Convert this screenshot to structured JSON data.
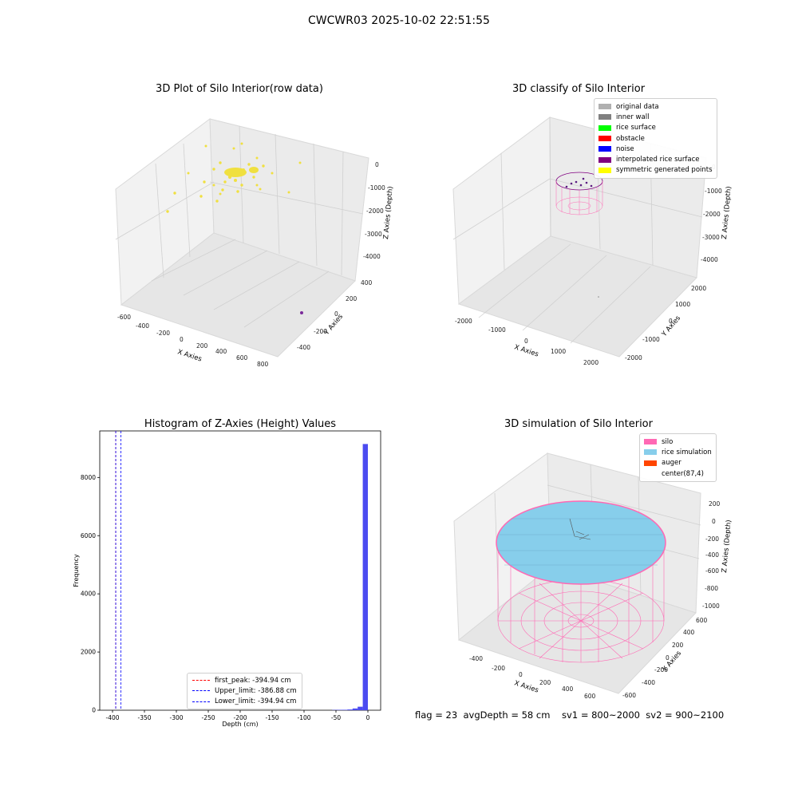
{
  "suptitle": "CWCWR03 2025-10-02 22:51:55",
  "panels": {
    "raw": {
      "title": "3D Plot of Silo Interior(row data)",
      "xlabel": "X Axies",
      "ylabel": "Y Axies",
      "zlabel": "Z Axies (Depth)",
      "xticks": [
        "-600",
        "-400",
        "-200",
        "0",
        "200",
        "400",
        "600",
        "800"
      ],
      "yticks": [
        "-400",
        "-200",
        "0",
        "200",
        "400"
      ],
      "zticks": [
        "0",
        "-1000",
        "-2000",
        "-3000",
        "-4000"
      ]
    },
    "classify": {
      "title": "3D classify of Silo Interior",
      "xlabel": "X Axies",
      "ylabel": "Y Axies",
      "zlabel": "Z Axies (Depth)",
      "xticks": [
        "-2000",
        "-1000",
        "0",
        "1000",
        "2000"
      ],
      "yticks": [
        "-2000",
        "-1000",
        "0",
        "1000",
        "2000"
      ],
      "zticks": [
        "0",
        "-1000",
        "-2000",
        "-3000",
        "-4000"
      ],
      "legend": [
        {
          "label": "original data",
          "color": "#b0b0b0"
        },
        {
          "label": "inner wall",
          "color": "#808080"
        },
        {
          "label": "rice surface",
          "color": "#00ff00"
        },
        {
          "label": "obstacle",
          "color": "#ff0000"
        },
        {
          "label": "noise",
          "color": "#0000ff"
        },
        {
          "label": "interpolated rice surface",
          "color": "#800080"
        },
        {
          "label": "symmetric generated points",
          "color": "#ffff00"
        }
      ]
    },
    "histogram": {
      "title": "Histogram of Z-Axies (Height) Values",
      "legend": [
        {
          "label": "first_peak: -394.94 cm",
          "color": "#ff0000"
        },
        {
          "label": "Upper_limit: -386.88 cm",
          "color": "#0000ff"
        },
        {
          "label": "Lower_limit: -394.94 cm",
          "color": "#0000ff"
        }
      ]
    },
    "simulation": {
      "title": "3D simulation of Silo Interior",
      "xlabel": "X Axies",
      "ylabel": "Y Axies",
      "zlabel": "Z Axies (Depth)",
      "xticks": [
        "-400",
        "-200",
        "0",
        "200",
        "400",
        "600"
      ],
      "yticks": [
        "-600",
        "-400",
        "-200",
        "0",
        "200",
        "400",
        "600"
      ],
      "zticks": [
        "200",
        "0",
        "-200",
        "-400",
        "-600",
        "-800",
        "-1000"
      ],
      "legend": [
        {
          "label": "silo",
          "color": "#ff69b4"
        },
        {
          "label": "rice simulation",
          "color": "#87ceeb"
        },
        {
          "label": "auger",
          "color": "#ff4500"
        },
        {
          "label": "center(87,4)",
          "color": ""
        }
      ]
    }
  },
  "footer": "flag = 23  avgDepth = 58 cm    sv1 = 800~2000  sv2 = 900~2100",
  "chart_data": [
    {
      "type": "bar",
      "title": "Histogram of Z-Axies (Height) Values",
      "xlabel": "Depth (cm)",
      "ylabel": "Frequency",
      "xlim": [
        -420,
        20
      ],
      "ylim": [
        0,
        9600
      ],
      "xticks": [
        -400,
        -350,
        -300,
        -250,
        -200,
        -150,
        -100,
        -50,
        0
      ],
      "yticks": [
        0,
        2000,
        4000,
        6000,
        8000
      ],
      "bins": [
        {
          "x0": -56,
          "x1": -48,
          "count": 10
        },
        {
          "x0": -48,
          "x1": -40,
          "count": 12
        },
        {
          "x0": -40,
          "x1": -32,
          "count": 15
        },
        {
          "x0": -32,
          "x1": -24,
          "count": 25
        },
        {
          "x0": -24,
          "x1": -16,
          "count": 60
        },
        {
          "x0": -16,
          "x1": -8,
          "count": 120
        },
        {
          "x0": -8,
          "x1": 0,
          "count": 9150
        }
      ],
      "vlines": [
        {
          "name": "first_peak",
          "x": -394.94,
          "color": "#ff0000"
        },
        {
          "name": "Upper_limit",
          "x": -386.88,
          "color": "#0000ff"
        },
        {
          "name": "Lower_limit",
          "x": -394.94,
          "color": "#0000ff"
        }
      ],
      "bar_color": "#4b4bf0",
      "legend_position": "lower-center"
    }
  ]
}
